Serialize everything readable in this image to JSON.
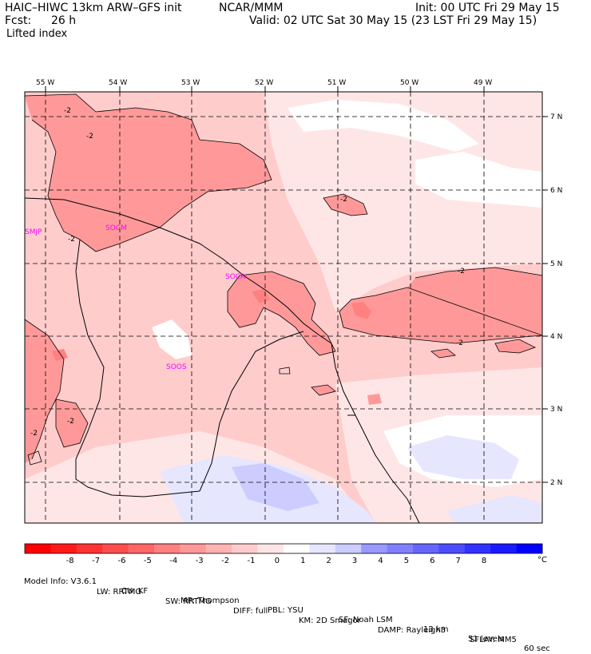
{
  "header": {
    "model": "HAIC–HIWC 13km ARW–GFS init",
    "org": "NCAR/MMM",
    "init": "Init: 00 UTC Fri 29 May 15",
    "fcst_label": "Fcst:",
    "fcst_value": "26 h",
    "valid": "Valid: 02 UTC Sat 30 May 15 (23 LST Fri 29 May 15)",
    "field": "Lifted index"
  },
  "map": {
    "lon_labels": [
      "55 W",
      "54 W",
      "53 W",
      "52 W",
      "51 W",
      "50 W",
      "49 W"
    ],
    "lat_labels": [
      "7 N",
      "6 N",
      "5 N",
      "4 N",
      "3 N",
      "2 N"
    ],
    "stations": [
      "SMJP",
      "SOCM",
      "SOCA",
      "SOOS"
    ],
    "contour_label": "-2"
  },
  "colorbar": {
    "labels": [
      "-8",
      "-7",
      "-6",
      "-5",
      "-4",
      "-3",
      "-2",
      "-1",
      "0",
      "1",
      "2",
      "3",
      "4",
      "5",
      "6",
      "7",
      "8"
    ],
    "unit": "°C",
    "colors": [
      "#ff0000",
      "#ff1a1a",
      "#ff3333",
      "#ff4d4d",
      "#ff6666",
      "#ff8080",
      "#ff9999",
      "#ffb3b3",
      "#ffcccc",
      "#ffe6e6",
      "#ffffff",
      "#e6e6ff",
      "#ccccff",
      "#9999ff",
      "#8080ff",
      "#6666ff",
      "#4d4dff",
      "#3333ff",
      "#1a1aff",
      "#0000ff"
    ]
  },
  "footer": {
    "line1": {
      "info": "Model Info: V3.6.1",
      "cu": "CU: KF",
      "mp": "MP: Thompson",
      "pbl": "PBL: YSU",
      "sf": "SF: Noah LSM",
      "res": "13 km",
      "levels": "51 levels",
      "dt": "60 sec"
    },
    "line2": {
      "lw": "LW: RRTMG",
      "sw": "SW: RRTMG",
      "diff": "DIFF: full",
      "km": "KM: 2D Smagor",
      "damp": "DAMP: Rayleigh3",
      "sflay": "SFLAY: MM5"
    }
  }
}
